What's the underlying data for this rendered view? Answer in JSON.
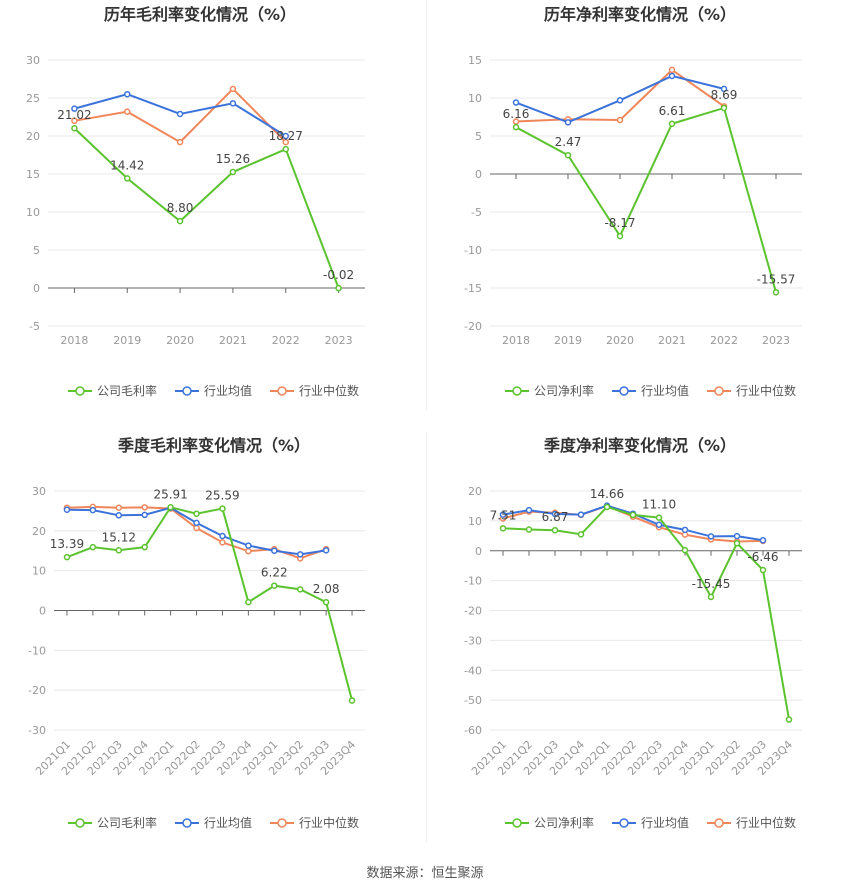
{
  "footer": {
    "source": "数据来源：恒生聚源"
  },
  "chart_data": [
    {
      "type": "line",
      "title": "历年毛利率变化情况（%）",
      "categories": [
        "2018",
        "2019",
        "2020",
        "2021",
        "2022",
        "2023"
      ],
      "ylim": [
        -5,
        30
      ],
      "yticks": [
        -5,
        0,
        5,
        10,
        15,
        20,
        25,
        30
      ],
      "labeled_series": 0,
      "series": [
        {
          "name": "公司毛利率",
          "color": "#5bc32e",
          "values": [
            21.02,
            14.42,
            8.8,
            15.26,
            18.27,
            -0.02
          ],
          "labels": [
            "21.02",
            "14.42",
            "8.80",
            "15.26",
            "18.27",
            "-0.02"
          ]
        },
        {
          "name": "行业均值",
          "color": "#3b73db",
          "values": [
            23.6,
            25.5,
            22.9,
            24.3,
            20.0,
            null
          ]
        },
        {
          "name": "行业中位数",
          "color": "#f0865a",
          "values": [
            22.0,
            23.2,
            19.2,
            26.2,
            19.2,
            null
          ]
        }
      ],
      "legend_position": "bottom"
    },
    {
      "type": "line",
      "title": "历年净利率变化情况（%）",
      "categories": [
        "2018",
        "2019",
        "2020",
        "2021",
        "2022",
        "2023"
      ],
      "ylim": [
        -20,
        15
      ],
      "yticks": [
        -20,
        -15,
        -10,
        -5,
        0,
        5,
        10,
        15
      ],
      "labeled_series": 0,
      "series": [
        {
          "name": "公司净利率",
          "color": "#5bc32e",
          "values": [
            6.16,
            2.47,
            -8.17,
            6.61,
            8.69,
            -15.57
          ],
          "labels": [
            "6.16",
            "2.47",
            "-8.17",
            "6.61",
            "8.69",
            "-15.57"
          ]
        },
        {
          "name": "行业均值",
          "color": "#3b73db",
          "values": [
            9.4,
            6.8,
            9.7,
            12.9,
            11.2,
            null
          ]
        },
        {
          "name": "行业中位数",
          "color": "#f0865a",
          "values": [
            6.9,
            7.2,
            7.1,
            13.7,
            8.9,
            null
          ]
        }
      ],
      "legend_position": "bottom"
    },
    {
      "type": "line",
      "title": "季度毛利率变化情况（%）",
      "categories": [
        "2021Q1",
        "2021Q2",
        "2021Q3",
        "2021Q4",
        "2022Q1",
        "2022Q2",
        "2022Q3",
        "2022Q4",
        "2023Q1",
        "2023Q2",
        "2023Q3",
        "2023Q4"
      ],
      "ylim": [
        -30,
        30
      ],
      "yticks": [
        -30,
        -20,
        -10,
        0,
        10,
        20,
        30
      ],
      "labeled_series": 0,
      "series": [
        {
          "name": "公司毛利率",
          "color": "#5bc32e",
          "values": [
            13.39,
            15.9,
            15.12,
            15.9,
            25.91,
            24.3,
            25.59,
            2.1,
            6.22,
            5.3,
            2.08,
            -22.6
          ],
          "labels": [
            "13.39",
            "",
            "15.12",
            "",
            "25.91",
            "",
            "25.59",
            "",
            "6.22",
            "",
            "2.08",
            ""
          ]
        },
        {
          "name": "行业均值",
          "color": "#3b73db",
          "values": [
            25.3,
            25.2,
            23.9,
            24.0,
            25.8,
            22.0,
            18.7,
            16.3,
            15.0,
            14.1,
            15.1,
            null
          ]
        },
        {
          "name": "行业中位数",
          "color": "#f0865a",
          "values": [
            25.8,
            26.0,
            25.8,
            25.9,
            25.6,
            20.7,
            17.1,
            14.9,
            15.4,
            13.1,
            15.4,
            null
          ]
        }
      ],
      "legend_position": "bottom"
    },
    {
      "type": "line",
      "title": "季度净利率变化情况（%）",
      "categories": [
        "2021Q1",
        "2021Q2",
        "2021Q3",
        "2021Q4",
        "2022Q1",
        "2022Q2",
        "2022Q3",
        "2022Q4",
        "2023Q1",
        "2023Q2",
        "2023Q3",
        "2023Q4"
      ],
      "ylim": [
        -60,
        20
      ],
      "yticks": [
        -60,
        -50,
        -40,
        -30,
        -20,
        -10,
        0,
        10,
        20
      ],
      "labeled_series": 0,
      "series": [
        {
          "name": "公司净利率",
          "color": "#5bc32e",
          "values": [
            7.51,
            7.1,
            6.87,
            5.5,
            14.66,
            12.0,
            11.1,
            0.2,
            -15.45,
            2.5,
            -6.46,
            -56.5
          ],
          "labels": [
            "7.51",
            "",
            "6.87",
            "",
            "14.66",
            "",
            "11.10",
            "",
            "-15.45",
            "",
            "-6.46",
            ""
          ]
        },
        {
          "name": "行业均值",
          "color": "#3b73db",
          "values": [
            12.1,
            13.6,
            12.3,
            12.1,
            15.1,
            12.4,
            8.7,
            7.0,
            4.8,
            4.9,
            3.5,
            null
          ]
        },
        {
          "name": "行业中位数",
          "color": "#f0865a",
          "values": [
            10.8,
            13.1,
            12.7,
            12.0,
            15.0,
            11.4,
            7.9,
            5.4,
            3.8,
            3.1,
            3.3,
            null
          ]
        }
      ],
      "legend_position": "bottom"
    }
  ]
}
